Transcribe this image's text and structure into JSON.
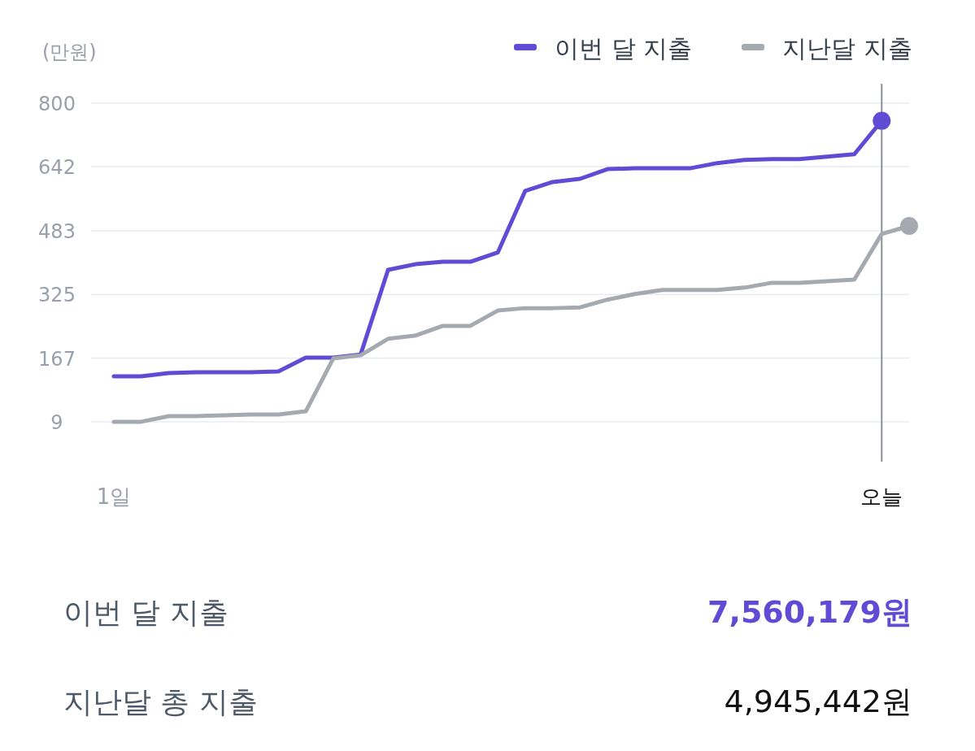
{
  "chart_data": {
    "type": "line",
    "ylabel": "(만원)",
    "categories": [
      "1일",
      null,
      null,
      null,
      null,
      null,
      null,
      null,
      null,
      null,
      null,
      null,
      null,
      null,
      null,
      null,
      null,
      null,
      null,
      null,
      null,
      null,
      null,
      null,
      null,
      null,
      null,
      null,
      "오늘",
      null
    ],
    "ylim": [
      -90,
      848
    ],
    "yticks": [
      9,
      167,
      325,
      483,
      642,
      800
    ],
    "series": [
      {
        "name": "이번 달 지출",
        "color": "#5f4bd4",
        "values": [
          122,
          122,
          130,
          132,
          132,
          132,
          134,
          168,
          168,
          176,
          386,
          400,
          406,
          406,
          429,
          582,
          604,
          612,
          636,
          638,
          638,
          638,
          651,
          659,
          661,
          661,
          667,
          673,
          756,
          null
        ]
      },
      {
        "name": "지난달 지출",
        "color": "#a5a9b0",
        "values": [
          9,
          9,
          23,
          23,
          25,
          27,
          27,
          35,
          166,
          174,
          215,
          223,
          247,
          247,
          285,
          291,
          291,
          293,
          312,
          326,
          336,
          336,
          336,
          342,
          354,
          354,
          358,
          362,
          475,
          495
        ]
      }
    ],
    "ref_lines": [
      {
        "axis": "x",
        "value": "오늘",
        "color": "#8b9099"
      }
    ],
    "grid": "y",
    "legend": "top right",
    "annotations": [
      "이번 달 지출",
      "7,560,179원",
      "지난달 총 지출",
      "4,945,442원"
    ]
  }
}
